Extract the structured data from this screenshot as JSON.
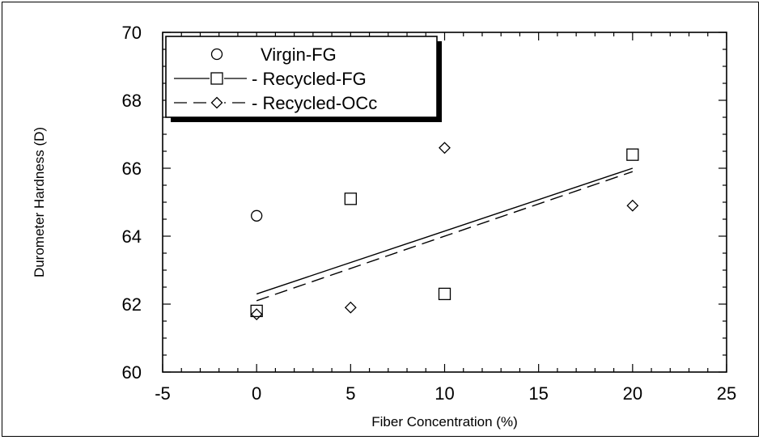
{
  "chart_data": {
    "type": "scatter",
    "xlabel": "Fiber Concentration (%)",
    "ylabel": "Durometer Hardness (D)",
    "xlim": [
      -5,
      25
    ],
    "ylim": [
      60,
      70
    ],
    "xticks": [
      "-5",
      "0",
      "5",
      "10",
      "15",
      "20",
      "25"
    ],
    "yticks": [
      "60",
      "62",
      "64",
      "66",
      "68",
      "70"
    ],
    "grid": false,
    "legend_position": "top-left",
    "series": [
      {
        "name": "Virgin-FG",
        "legend_label": "Virgin-FG",
        "marker": "circle",
        "line": "none",
        "points": [
          [
            0,
            64.6
          ]
        ]
      },
      {
        "name": "Recycled-FG",
        "legend_label": "- Recycled-FG",
        "marker": "square",
        "line": "solid",
        "points": [
          [
            0,
            61.8
          ],
          [
            5,
            65.1
          ],
          [
            10,
            62.3
          ],
          [
            20,
            66.4
          ]
        ],
        "fit": [
          [
            0,
            62.3
          ],
          [
            20,
            66.0
          ]
        ]
      },
      {
        "name": "Recycled-OCc",
        "legend_label": "- Recycled-OCc",
        "marker": "diamond",
        "line": "dashed",
        "points": [
          [
            0,
            61.7
          ],
          [
            5,
            61.9
          ],
          [
            10,
            66.6
          ],
          [
            20,
            64.9
          ]
        ],
        "fit": [
          [
            0,
            62.1
          ],
          [
            20,
            65.9
          ]
        ]
      }
    ]
  }
}
